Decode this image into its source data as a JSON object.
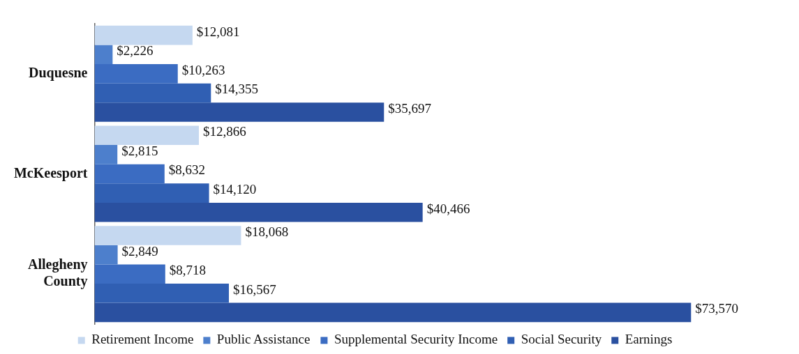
{
  "chart_data": {
    "type": "bar",
    "orientation": "horizontal",
    "categories": [
      "Duquesne",
      "McKeesport",
      "Allegheny County"
    ],
    "series": [
      {
        "name": "Retirement Income",
        "color": "#c5d8f0",
        "values": [
          12081,
          12866,
          18068
        ],
        "value_labels": [
          "$12,081",
          "$12,866",
          "$18,068"
        ]
      },
      {
        "name": "Public Assistance",
        "color": "#4d7fcc",
        "values": [
          2226,
          2815,
          2849
        ],
        "value_labels": [
          "$2,226",
          "$2,815",
          "$2,849"
        ]
      },
      {
        "name": "Supplemental Security Income",
        "color": "#3b6cc2",
        "values": [
          10263,
          8632,
          8718
        ],
        "value_labels": [
          "$10,263",
          "$8,632",
          "$8,718"
        ]
      },
      {
        "name": "Social Security",
        "color": "#305fb3",
        "values": [
          14355,
          14120,
          16567
        ],
        "value_labels": [
          "$14,355",
          "$14,120",
          "$16,567"
        ]
      },
      {
        "name": "Earnings",
        "color": "#2a50a0",
        "values": [
          35697,
          40466,
          73570
        ],
        "value_labels": [
          "$35,697",
          "$40,466",
          "$73,570"
        ]
      }
    ],
    "legend": "bottom"
  }
}
